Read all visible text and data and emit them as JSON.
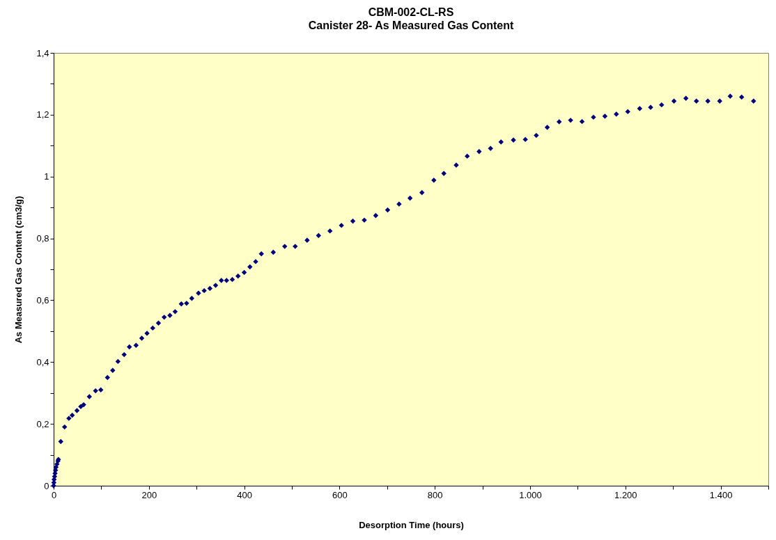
{
  "chart_data": {
    "type": "scatter",
    "title": "CBM-002-CL-RS",
    "subtitle": "Canister  28- As Measured Gas Content",
    "xlabel": "Desorption  Time (hours)",
    "ylabel": "As Measured Gas Content (cm3/g)",
    "marker": "diamond",
    "grid": false,
    "xlim": [
      0,
      1500
    ],
    "ylim": [
      0,
      1.4
    ],
    "xticks": [
      0,
      {
        "value": 100,
        "label": null
      },
      200,
      {
        "value": 300,
        "label": null
      },
      400,
      {
        "value": 500,
        "label": null
      },
      600,
      {
        "value": 700,
        "label": null
      },
      800,
      {
        "value": 900,
        "label": null
      },
      {
        "value": 1000,
        "label": "1.000"
      },
      {
        "value": 1100,
        "label": null
      },
      {
        "value": 1200,
        "label": "1.200"
      },
      {
        "value": 1300,
        "label": null
      },
      {
        "value": 1400,
        "label": "1.400"
      },
      {
        "value": 1500,
        "label": null
      }
    ],
    "yticks": [
      0,
      {
        "value": 0.1,
        "label": null
      },
      {
        "value": 0.2,
        "label": "0,2"
      },
      {
        "value": 0.3,
        "label": null
      },
      {
        "value": 0.4,
        "label": "0,4"
      },
      {
        "value": 0.5,
        "label": null
      },
      {
        "value": 0.6,
        "label": "0,6"
      },
      {
        "value": 0.7,
        "label": null
      },
      {
        "value": 0.8,
        "label": "0,8"
      },
      {
        "value": 0.9,
        "label": null
      },
      1,
      {
        "value": 1.1,
        "label": null
      },
      {
        "value": 1.2,
        "label": "1,2"
      },
      {
        "value": 1.3,
        "label": null
      },
      {
        "value": 1.4,
        "label": "1,4"
      }
    ],
    "series": [
      {
        "color": "#000080",
        "x": [
          0,
          0.5,
          1,
          2,
          3,
          4,
          5,
          7,
          9,
          10,
          15,
          23,
          32,
          39,
          49,
          57,
          63,
          75,
          88,
          99,
          113,
          124,
          135,
          148,
          159,
          173,
          185,
          196,
          208,
          220,
          232,
          244,
          255,
          268,
          279,
          290,
          304,
          316,
          328,
          340,
          352,
          363,
          375,
          387,
          400,
          412,
          424,
          436,
          461,
          485,
          507,
          532,
          556,
          580,
          604,
          628,
          652,
          676,
          701,
          725,
          748,
          773,
          798,
          819,
          845,
          868,
          893,
          917,
          939,
          965,
          990,
          1013,
          1036,
          1061,
          1085,
          1109,
          1133,
          1157,
          1181,
          1205,
          1230,
          1253,
          1276,
          1302,
          1327,
          1349,
          1373,
          1398,
          1420,
          1444,
          1469
        ],
        "values": [
          0,
          0.01,
          0.02,
          0.03,
          0.04,
          0.05,
          0.06,
          0.07,
          0.08,
          0.085,
          0.143,
          0.19,
          0.218,
          0.228,
          0.243,
          0.256,
          0.262,
          0.288,
          0.307,
          0.31,
          0.35,
          0.373,
          0.402,
          0.424,
          0.449,
          0.454,
          0.477,
          0.493,
          0.51,
          0.526,
          0.545,
          0.551,
          0.563,
          0.588,
          0.59,
          0.606,
          0.623,
          0.631,
          0.638,
          0.648,
          0.664,
          0.664,
          0.667,
          0.678,
          0.69,
          0.708,
          0.725,
          0.75,
          0.755,
          0.774,
          0.774,
          0.794,
          0.809,
          0.824,
          0.842,
          0.856,
          0.859,
          0.874,
          0.892,
          0.911,
          0.93,
          0.948,
          0.988,
          1.01,
          1.037,
          1.066,
          1.081,
          1.091,
          1.112,
          1.118,
          1.12,
          1.133,
          1.159,
          1.177,
          1.182,
          1.178,
          1.192,
          1.195,
          1.202,
          1.21,
          1.22,
          1.224,
          1.232,
          1.244,
          1.253,
          1.244,
          1.244,
          1.244,
          1.26,
          1.257,
          1.244
        ]
      }
    ]
  }
}
